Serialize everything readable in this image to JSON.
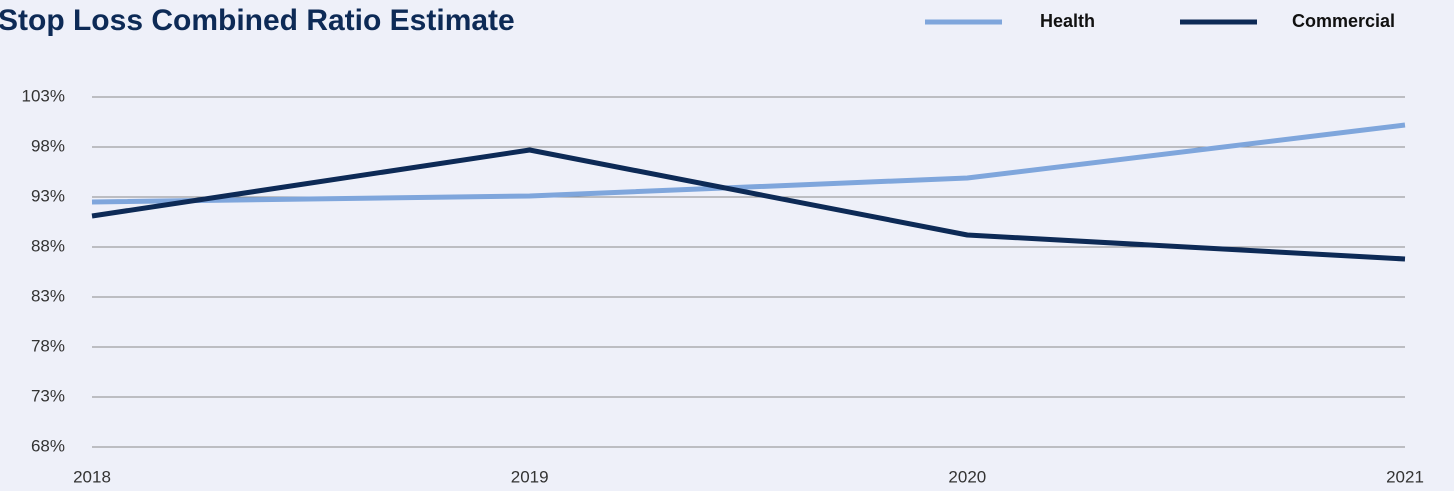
{
  "chart_data": {
    "type": "line",
    "title": "Stop Loss Combined Ratio Estimate",
    "categories": [
      "2018",
      "2019",
      "2020",
      "2021"
    ],
    "series": [
      {
        "name": "Health",
        "color": "#7fa6dc",
        "values": [
          92.5,
          93.1,
          94.9,
          100.2
        ]
      },
      {
        "name": "Commercial",
        "color": "#0d2a56",
        "values": [
          91.1,
          97.7,
          89.2,
          86.8
        ]
      }
    ],
    "ylim": [
      68,
      103
    ],
    "yticks": [
      {
        "value": 68,
        "label": "68%"
      },
      {
        "value": 73,
        "label": "73%"
      },
      {
        "value": 78,
        "label": "78%"
      },
      {
        "value": 83,
        "label": "83%"
      },
      {
        "value": 88,
        "label": "88%"
      },
      {
        "value": 93,
        "label": "93%"
      },
      {
        "value": 98,
        "label": "98%"
      },
      {
        "value": 103,
        "label": "103%"
      }
    ],
    "grid": true,
    "legend": "top-right"
  }
}
